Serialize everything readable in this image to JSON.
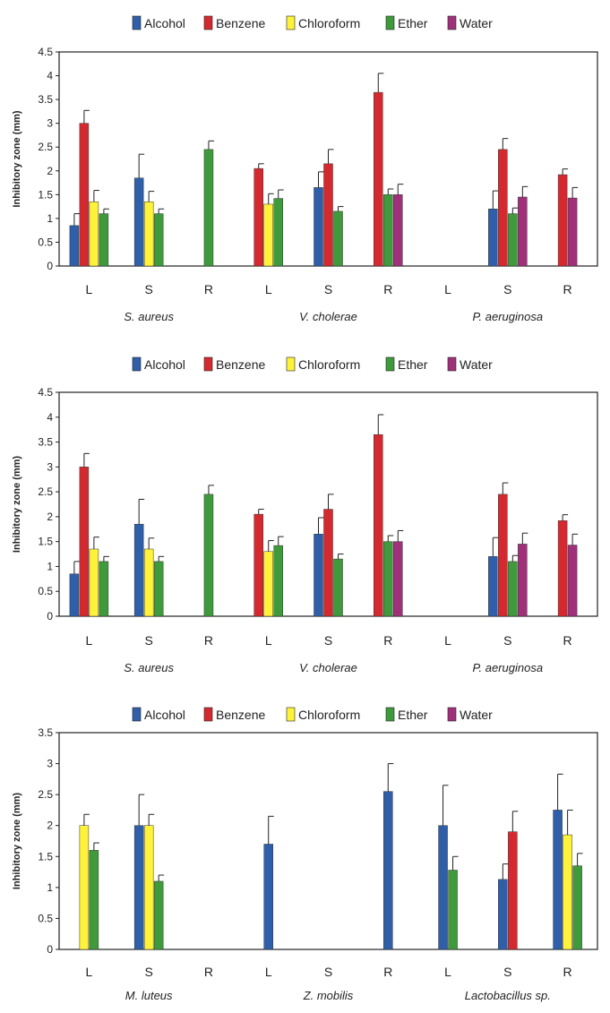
{
  "legend_labels": [
    "Alcohol",
    "Benzene",
    "Chloroform",
    "Ether",
    "Water"
  ],
  "series_colors": {
    "Alcohol": "#2F5FA8",
    "Benzene": "#D42A2F",
    "Chloroform": "#FFF23A",
    "Ether": "#3F9A3C",
    "Water": "#A0307A"
  },
  "chart_data": [
    {
      "type": "bar",
      "ylabel": "Inhibitory zone (mm)",
      "ylim": [
        0,
        4.5
      ],
      "yticks": [
        "0",
        "0.5",
        "1",
        "1.5",
        "2",
        "2.5",
        "3",
        "3.5",
        "4",
        "4.5"
      ],
      "categories": [
        "L",
        "S",
        "R",
        "L",
        "S",
        "R",
        "L",
        "S",
        "R"
      ],
      "groups": [
        "S. aureus",
        "V. cholerae",
        "P. aeruginosa"
      ],
      "legend_position": "top",
      "grid": false,
      "series": [
        {
          "name": "Alcohol",
          "values": [
            0.85,
            1.85,
            0,
            0,
            1.65,
            0,
            0,
            1.2,
            0
          ],
          "errors": [
            0.25,
            0.5,
            0,
            0,
            0.33,
            0,
            0,
            0.38,
            0
          ]
        },
        {
          "name": "Benzene",
          "values": [
            3.0,
            0,
            0,
            2.05,
            2.15,
            3.65,
            0,
            2.45,
            1.92
          ],
          "errors": [
            0.27,
            0,
            0,
            0.1,
            0.3,
            0.4,
            0,
            0.23,
            0.12
          ]
        },
        {
          "name": "Chloroform",
          "values": [
            1.35,
            1.35,
            0,
            1.3,
            0,
            0,
            0,
            0,
            0
          ],
          "errors": [
            0.24,
            0.22,
            0,
            0.22,
            0,
            0,
            0,
            0,
            0
          ]
        },
        {
          "name": "Ether",
          "values": [
            1.1,
            1.1,
            2.45,
            1.42,
            1.15,
            1.5,
            0,
            1.1,
            0
          ],
          "errors": [
            0.1,
            0.1,
            0.18,
            0.18,
            0.1,
            0.12,
            0,
            0.12,
            0
          ]
        },
        {
          "name": "Water",
          "values": [
            0,
            0,
            0,
            0,
            0,
            1.5,
            0,
            1.45,
            1.43
          ],
          "errors": [
            0,
            0,
            0,
            0,
            0,
            0.22,
            0,
            0.22,
            0.22
          ]
        }
      ]
    },
    {
      "type": "bar",
      "ylabel": "Inhibitory zone (mm)",
      "ylim": [
        0,
        4.5
      ],
      "yticks": [
        "0",
        "0.5",
        "1",
        "1.5",
        "2",
        "2.5",
        "3",
        "3.5",
        "4",
        "4.5"
      ],
      "categories": [
        "L",
        "S",
        "R",
        "L",
        "S",
        "R",
        "L",
        "S",
        "R"
      ],
      "groups": [
        "S. aureus",
        "V. cholerae",
        "P. aeruginosa"
      ],
      "legend_position": "top",
      "grid": false,
      "series": [
        {
          "name": "Alcohol",
          "values": [
            0.85,
            1.85,
            0,
            0,
            1.65,
            0,
            0,
            1.2,
            0
          ],
          "errors": [
            0.25,
            0.5,
            0,
            0,
            0.33,
            0,
            0,
            0.38,
            0
          ]
        },
        {
          "name": "Benzene",
          "values": [
            3.0,
            0,
            0,
            2.05,
            2.15,
            3.65,
            0,
            2.45,
            1.92
          ],
          "errors": [
            0.27,
            0,
            0,
            0.1,
            0.3,
            0.4,
            0,
            0.23,
            0.12
          ]
        },
        {
          "name": "Chloroform",
          "values": [
            1.35,
            1.35,
            0,
            1.3,
            0,
            0,
            0,
            0,
            0
          ],
          "errors": [
            0.24,
            0.22,
            0,
            0.22,
            0,
            0,
            0,
            0,
            0
          ]
        },
        {
          "name": "Ether",
          "values": [
            1.1,
            1.1,
            2.45,
            1.42,
            1.15,
            1.5,
            0,
            1.1,
            0
          ],
          "errors": [
            0.1,
            0.1,
            0.18,
            0.18,
            0.1,
            0.12,
            0,
            0.12,
            0
          ]
        },
        {
          "name": "Water",
          "values": [
            0,
            0,
            0,
            0,
            0,
            1.5,
            0,
            1.45,
            1.43
          ],
          "errors": [
            0,
            0,
            0,
            0,
            0,
            0.22,
            0,
            0.22,
            0.22
          ]
        }
      ]
    },
    {
      "type": "bar",
      "ylabel": "Inhibitory zone (mm)",
      "ylim": [
        0,
        3.5
      ],
      "yticks": [
        "0",
        "0.5",
        "1",
        "1.5",
        "2",
        "2.5",
        "3",
        "3.5"
      ],
      "categories": [
        "L",
        "S",
        "R",
        "L",
        "S",
        "R",
        "L",
        "S",
        "R"
      ],
      "groups": [
        "M. luteus",
        "Z. mobilis",
        "Lactobacillus sp."
      ],
      "legend_position": "top",
      "grid": false,
      "series": [
        {
          "name": "Alcohol",
          "values": [
            0,
            2.0,
            0,
            1.7,
            0,
            2.55,
            2.0,
            1.13,
            2.25
          ],
          "errors": [
            0,
            0.5,
            0,
            0.45,
            0,
            0.45,
            0.65,
            0.25,
            0.58
          ]
        },
        {
          "name": "Benzene",
          "values": [
            0,
            0,
            0,
            0,
            0,
            0,
            0,
            1.9,
            0
          ],
          "errors": [
            0,
            0,
            0,
            0,
            0,
            0,
            0,
            0.33,
            0
          ]
        },
        {
          "name": "Chloroform",
          "values": [
            2.0,
            2.0,
            0,
            0,
            0,
            0,
            0,
            0,
            1.85
          ],
          "errors": [
            0.18,
            0.18,
            0,
            0,
            0,
            0,
            0,
            0,
            0.4
          ]
        },
        {
          "name": "Ether",
          "values": [
            1.6,
            1.1,
            0,
            0,
            0,
            0,
            1.28,
            0,
            1.35
          ],
          "errors": [
            0.12,
            0.1,
            0,
            0,
            0,
            0,
            0.22,
            0,
            0.2
          ]
        },
        {
          "name": "Water",
          "values": [
            0,
            0,
            0,
            0,
            0,
            0,
            0,
            0,
            0
          ],
          "errors": [
            0,
            0,
            0,
            0,
            0,
            0,
            0,
            0,
            0
          ]
        }
      ]
    }
  ]
}
